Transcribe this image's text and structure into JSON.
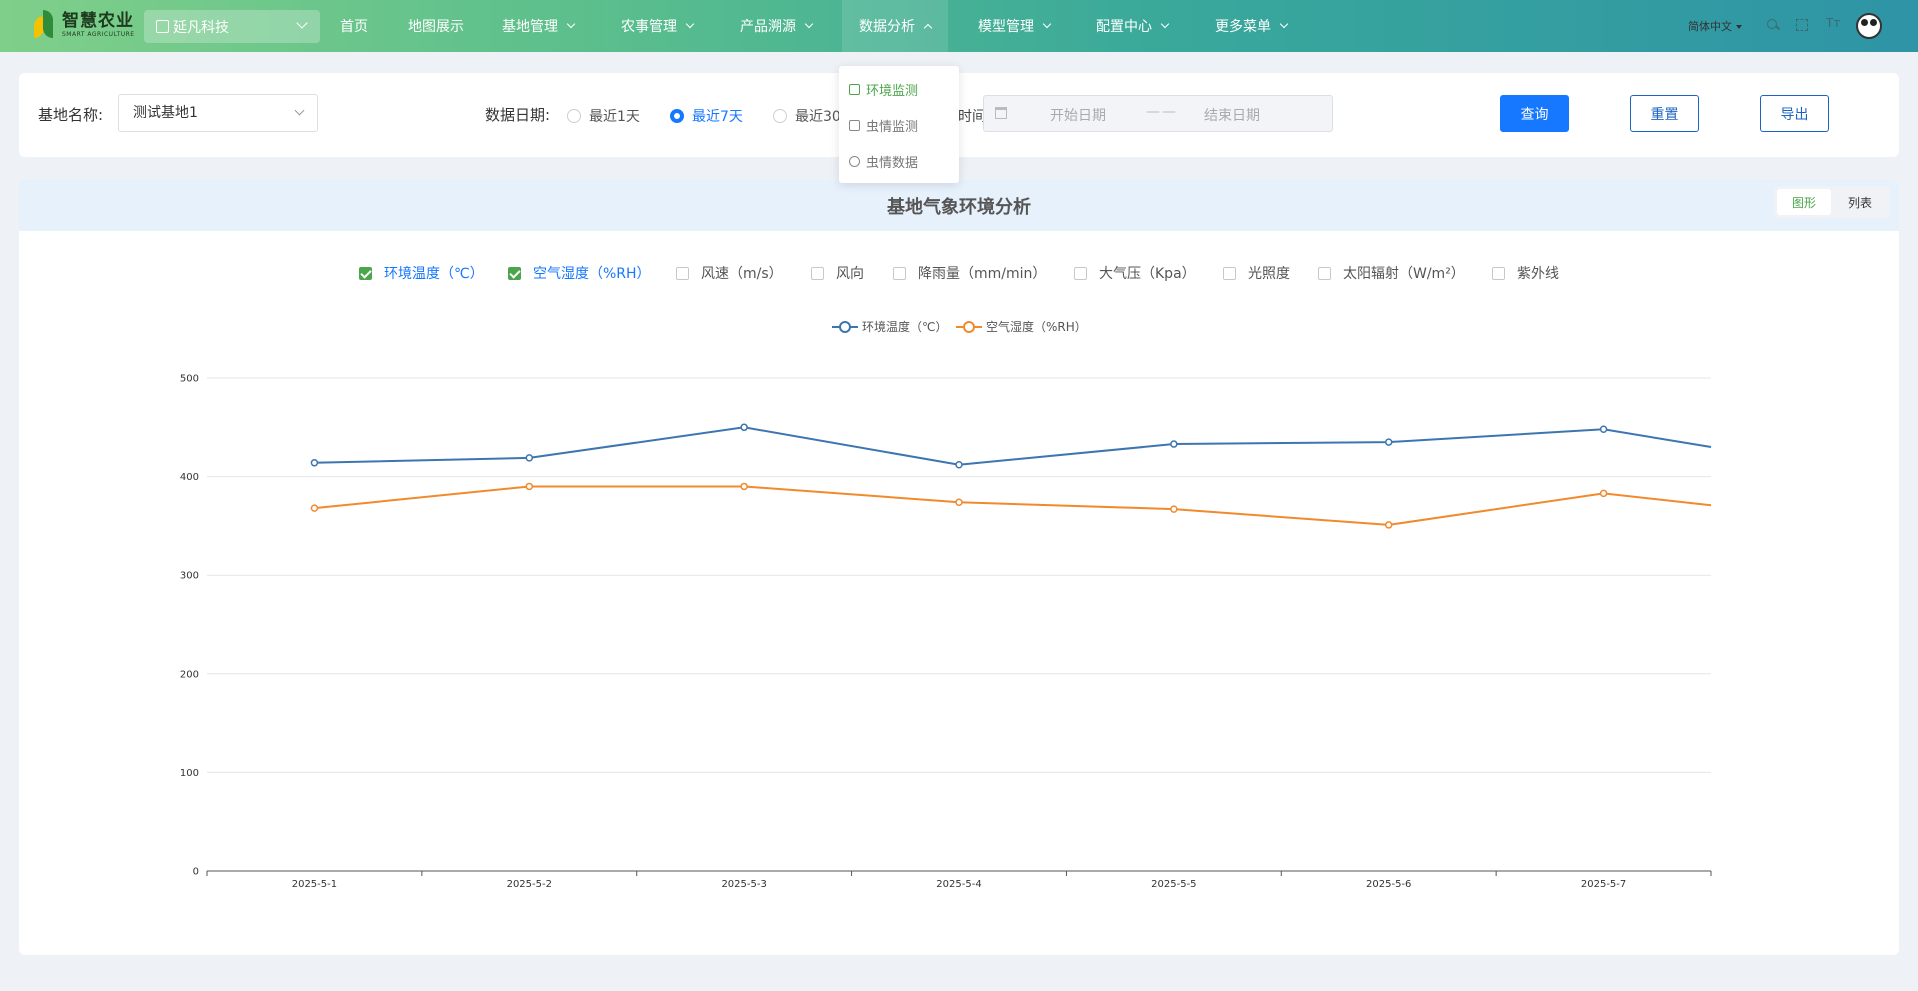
{
  "app": {
    "logo_cn": "智慧农业",
    "logo_en": "SMART AGRICULTURE",
    "tenant": "延凡科技"
  },
  "nav": [
    {
      "label": "首页",
      "dropdown": false
    },
    {
      "label": "地图展示",
      "dropdown": false
    },
    {
      "label": "基地管理",
      "dropdown": true
    },
    {
      "label": "农事管理",
      "dropdown": true
    },
    {
      "label": "产品溯源",
      "dropdown": true
    },
    {
      "label": "数据分析",
      "dropdown": true,
      "open": true
    },
    {
      "label": "模型管理",
      "dropdown": true
    },
    {
      "label": "配置中心",
      "dropdown": true
    },
    {
      "label": "更多菜单",
      "dropdown": true
    }
  ],
  "header_tools": {
    "language": "简体中文",
    "icons": [
      "search-icon",
      "fullscreen-icon",
      "font-size-icon",
      "user-avatar"
    ]
  },
  "dropdown_menu": [
    {
      "label": "环境监测",
      "icon": "environment-icon",
      "active": true
    },
    {
      "label": "虫情监测",
      "icon": "pest-monitor-icon",
      "active": false
    },
    {
      "label": "虫情数据",
      "icon": "pest-data-icon",
      "active": false
    }
  ],
  "filter": {
    "base_label": "基地名称:",
    "base_value": "测试基地1",
    "date_label": "数据日期:",
    "radios": [
      {
        "label": "最近1天",
        "checked": false
      },
      {
        "label": "最近7天",
        "checked": true
      },
      {
        "label": "最近30",
        "checked": false
      }
    ],
    "custom_label": "时间",
    "start_placeholder": "开始日期",
    "range_separator": "——",
    "end_placeholder": "结束日期",
    "query_label": "查询",
    "reset_label": "重置",
    "export_label": "导出"
  },
  "panel": {
    "title": "基地气象环境分析",
    "view_graph": "图形",
    "view_list": "列表",
    "metrics": [
      {
        "label": "环境温度（℃）",
        "checked": true
      },
      {
        "label": "空气湿度（%RH）",
        "checked": true
      },
      {
        "label": "风速（m/s）",
        "checked": false
      },
      {
        "label": "风向",
        "checked": false
      },
      {
        "label": "降雨量（mm/min）",
        "checked": false
      },
      {
        "label": "大气压（Kpa）",
        "checked": false
      },
      {
        "label": "光照度",
        "checked": false
      },
      {
        "label": "太阳辐射（W/m²）",
        "checked": false
      },
      {
        "label": "紫外线",
        "checked": false
      }
    ]
  },
  "colors": {
    "accent": "#1677ff",
    "green": "#4ba64b",
    "series_temperature": "#3d75b0",
    "series_humidity": "#f08a2c"
  },
  "chart_data": {
    "type": "line",
    "title": "",
    "xlabel": "",
    "ylabel": "",
    "ylim": [
      0,
      500
    ],
    "yticks": [
      0,
      100,
      200,
      300,
      400,
      500
    ],
    "grid": true,
    "legend_position": "top-center",
    "categories": [
      "2025-5-1",
      "2025-5-2",
      "2025-5-3",
      "2025-5-4",
      "2025-5-5",
      "2025-5-6",
      "2025-5-7"
    ],
    "series": [
      {
        "name": "环境温度（℃）",
        "color": "#3d75b0",
        "values": [
          414,
          419,
          450,
          412,
          433,
          435,
          448
        ],
        "trailing_value": 430
      },
      {
        "name": "空气湿度（%RH）",
        "color": "#f08a2c",
        "values": [
          368,
          390,
          390,
          374,
          367,
          351,
          383
        ],
        "trailing_value": 371
      }
    ]
  }
}
